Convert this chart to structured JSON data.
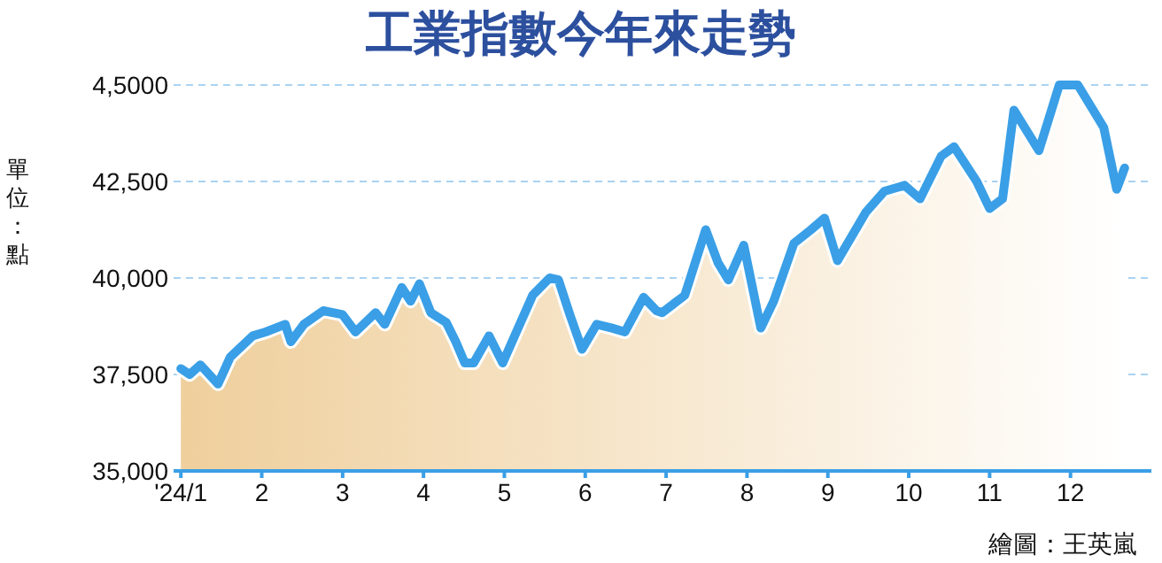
{
  "chart_data": {
    "type": "area",
    "title": "工業指數今年來走勢",
    "ylabel": "單位：點",
    "annotations": [
      "繪圖：王英嵐"
    ],
    "x": [
      1.0,
      1.11,
      1.24,
      1.46,
      1.61,
      1.89,
      2.05,
      2.29,
      2.36,
      2.52,
      2.76,
      3.0,
      3.16,
      3.41,
      3.52,
      3.73,
      3.84,
      3.95,
      4.09,
      4.28,
      4.4,
      4.51,
      4.62,
      4.81,
      4.98,
      5.19,
      5.35,
      5.56,
      5.67,
      5.81,
      5.96,
      6.14,
      6.33,
      6.49,
      6.72,
      6.88,
      6.95,
      7.23,
      7.49,
      7.64,
      7.77,
      7.96,
      8.17,
      8.33,
      8.58,
      8.79,
      8.96,
      9.12,
      9.47,
      9.7,
      9.95,
      10.14,
      10.4,
      10.56,
      10.84,
      11.0,
      11.16,
      11.3,
      11.61,
      11.86,
      12.09,
      12.41,
      12.57,
      12.67
    ],
    "series": [
      {
        "color": "#3a9fe6",
        "values": [
          37650,
          37500,
          37750,
          37250,
          37950,
          38500,
          38600,
          38800,
          38350,
          38800,
          39150,
          39050,
          38600,
          39100,
          38800,
          39750,
          39400,
          39850,
          39100,
          38850,
          38350,
          37800,
          37800,
          38500,
          37800,
          38800,
          39550,
          40000,
          39950,
          39050,
          38150,
          38800,
          38700,
          38600,
          39500,
          39150,
          39100,
          39550,
          41250,
          40400,
          39950,
          40850,
          38700,
          39400,
          40900,
          41250,
          41550,
          40450,
          41700,
          42250,
          42400,
          42050,
          43150,
          43400,
          42500,
          41800,
          42050,
          44350,
          43300,
          45000,
          45000,
          43900,
          42300,
          42850
        ]
      }
    ],
    "xlim": [
      0.91,
      13.0
    ],
    "xticks": [
      {
        "value": 1,
        "label": "'24/1"
      },
      2,
      3,
      4,
      5,
      6,
      7,
      8,
      9,
      10,
      11,
      12
    ],
    "ylim": [
      35000,
      45000
    ],
    "yticks": [
      {
        "value": 35000,
        "label": "35,000"
      },
      {
        "value": 37500,
        "label": "37,500"
      },
      {
        "value": 40000,
        "label": "40,000"
      },
      {
        "value": 42500,
        "label": "42,500"
      },
      {
        "value": 45000,
        "label": "4,5000"
      }
    ],
    "grid": "y",
    "marker": "none",
    "line_style": "solid"
  }
}
